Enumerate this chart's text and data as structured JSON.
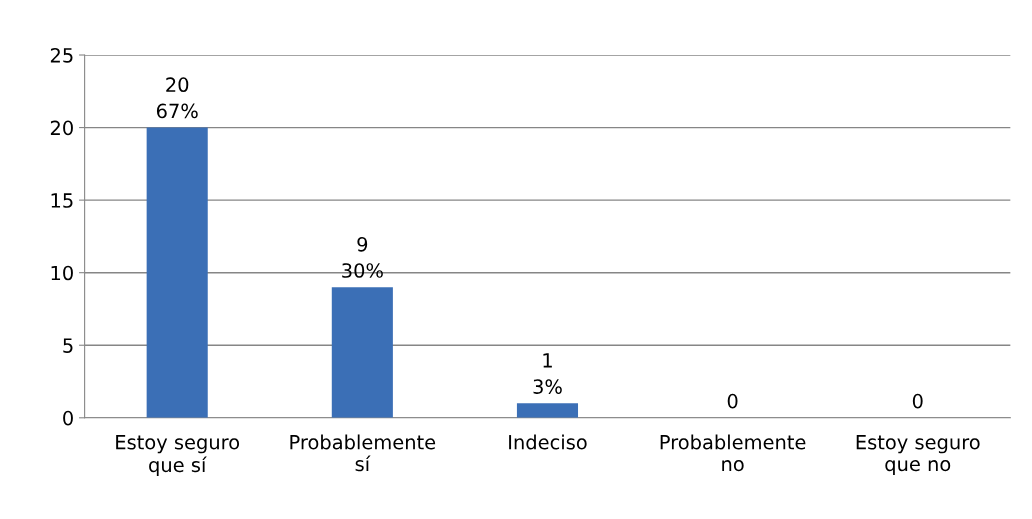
{
  "chart_data": {
    "type": "bar",
    "categories": [
      "Estoy seguro\nque sí",
      "Probablemente\nsí",
      "Indeciso",
      "Probablemente\nno",
      "Estoy seguro\nque no"
    ],
    "values": [
      20,
      9,
      1,
      0,
      0
    ],
    "value_labels": [
      "20\n67%",
      "9\n30%",
      "1\n3%",
      "0",
      "0"
    ],
    "color": "#3b6fb6",
    "ylim": [
      0,
      25
    ],
    "yticks": [
      0,
      5,
      10,
      15,
      20,
      25
    ],
    "grid": "y",
    "legend": false
  }
}
